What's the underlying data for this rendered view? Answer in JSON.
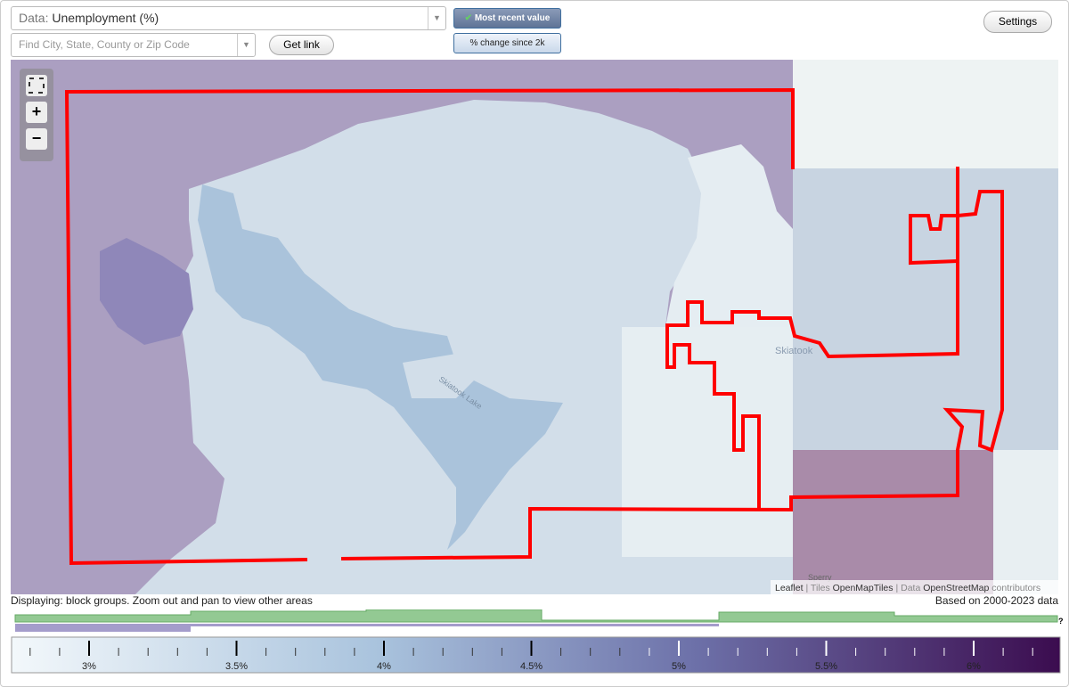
{
  "toolbar": {
    "data_label": "Data:",
    "data_value": "Unemployment (%)",
    "search_placeholder": "Find City, State, County or Zip Code",
    "get_link": "Get link",
    "most_recent": "Most recent value",
    "percent_change": "% change since 2k",
    "settings": "Settings"
  },
  "map": {
    "zoom_in": "+",
    "zoom_out": "−",
    "places": {
      "city": "Skiatook",
      "lake": "Skiatook Lake",
      "town": "Sperry"
    },
    "attribution": {
      "leaflet": "Leaflet",
      "sep1": "|",
      "tiles": "Tiles",
      "tiles_link": "OpenMapTiles",
      "sep2": "|",
      "data": "Data",
      "data_link": "OpenStreetMap",
      "contributors": "contributors"
    }
  },
  "status": {
    "displaying": "Displaying: block groups. Zoom out and pan to view other areas",
    "based_on": "Based on 2000-2023 data",
    "help": "?"
  },
  "legend": {
    "labels": [
      "3%",
      "3.5%",
      "4%",
      "4.5%",
      "5%",
      "5.5%",
      "6%"
    ]
  }
}
